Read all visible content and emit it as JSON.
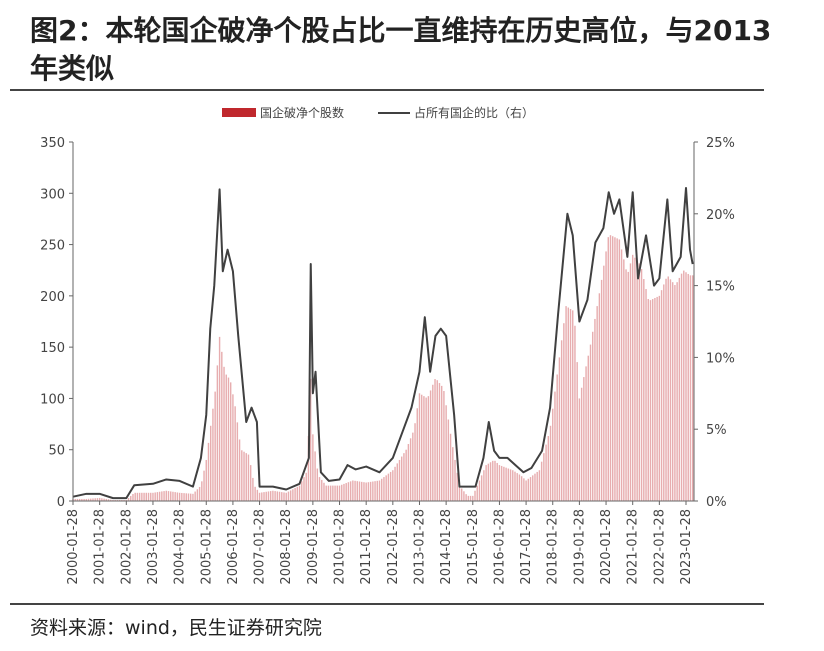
{
  "title": "图2：本轮国企破净个股占比一直维持在历史高位，与2013 年类似",
  "source": "资料来源：wind，民生证券研究院",
  "chart_data": {
    "type": "bar+line",
    "legend": {
      "bar_label": "国企破净个股数",
      "line_label": "占所有国企的比（右）"
    },
    "colors": {
      "bar": "#c0282d",
      "line": "#404040"
    },
    "y_left": {
      "min": 0,
      "max": 350,
      "ticks": [
        "0",
        "50",
        "100",
        "150",
        "200",
        "250",
        "300",
        "350"
      ]
    },
    "y_right": {
      "min": 0,
      "max": 25,
      "ticks": [
        "0%",
        "5%",
        "10%",
        "15%",
        "20%",
        "25%"
      ]
    },
    "x_ticks": [
      "2000-01-28",
      "2001-01-28",
      "2002-01-28",
      "2003-01-28",
      "2004-01-28",
      "2005-01-28",
      "2006-01-28",
      "2007-01-28",
      "2008-01-28",
      "2009-01-28",
      "2010-01-28",
      "2011-01-28",
      "2012-01-28",
      "2013-01-28",
      "2014-01-28",
      "2015-01-28",
      "2016-01-28",
      "2017-01-28",
      "2018-01-28",
      "2019-01-28",
      "2020-01-28",
      "2021-01-28",
      "2022-01-28",
      "2023-01-28"
    ],
    "bar_anchors": [
      [
        2000.0,
        2
      ],
      [
        2000.5,
        2
      ],
      [
        2001.0,
        3
      ],
      [
        2001.5,
        1
      ],
      [
        2002.0,
        1
      ],
      [
        2002.3,
        8
      ],
      [
        2003.0,
        8
      ],
      [
        2003.5,
        10
      ],
      [
        2004.0,
        8
      ],
      [
        2004.5,
        7
      ],
      [
        2004.8,
        15
      ],
      [
        2005.0,
        40
      ],
      [
        2005.2,
        80
      ],
      [
        2005.35,
        110
      ],
      [
        2005.5,
        160
      ],
      [
        2005.7,
        125
      ],
      [
        2005.9,
        118
      ],
      [
        2006.1,
        90
      ],
      [
        2006.3,
        50
      ],
      [
        2006.6,
        45
      ],
      [
        2006.8,
        15
      ],
      [
        2007.0,
        8
      ],
      [
        2007.5,
        10
      ],
      [
        2008.0,
        8
      ],
      [
        2008.5,
        15
      ],
      [
        2008.8,
        30
      ],
      [
        2008.9,
        130
      ],
      [
        2009.0,
        65
      ],
      [
        2009.2,
        25
      ],
      [
        2009.5,
        15
      ],
      [
        2010.0,
        15
      ],
      [
        2010.5,
        20
      ],
      [
        2011.0,
        18
      ],
      [
        2011.5,
        20
      ],
      [
        2012.0,
        30
      ],
      [
        2012.5,
        50
      ],
      [
        2012.8,
        70
      ],
      [
        2013.0,
        105
      ],
      [
        2013.3,
        100
      ],
      [
        2013.6,
        120
      ],
      [
        2013.9,
        110
      ],
      [
        2014.2,
        60
      ],
      [
        2014.5,
        15
      ],
      [
        2014.8,
        5
      ],
      [
        2015.0,
        5
      ],
      [
        2015.5,
        35
      ],
      [
        2015.8,
        40
      ],
      [
        2016.0,
        35
      ],
      [
        2016.5,
        30
      ],
      [
        2016.8,
        25
      ],
      [
        2017.0,
        20
      ],
      [
        2017.5,
        30
      ],
      [
        2017.9,
        70
      ],
      [
        2018.2,
        130
      ],
      [
        2018.5,
        190
      ],
      [
        2018.8,
        185
      ],
      [
        2019.0,
        100
      ],
      [
        2019.4,
        150
      ],
      [
        2019.8,
        210
      ],
      [
        2020.1,
        260
      ],
      [
        2020.5,
        255
      ],
      [
        2020.8,
        220
      ],
      [
        2021.0,
        240
      ],
      [
        2021.3,
        230
      ],
      [
        2021.6,
        195
      ],
      [
        2022.0,
        200
      ],
      [
        2022.3,
        220
      ],
      [
        2022.6,
        210
      ],
      [
        2022.9,
        225
      ],
      [
        2023.15,
        220
      ]
    ],
    "line_anchors": [
      [
        2000.0,
        0.3
      ],
      [
        2000.5,
        0.5
      ],
      [
        2001.0,
        0.5
      ],
      [
        2001.5,
        0.2
      ],
      [
        2002.0,
        0.2
      ],
      [
        2002.3,
        1.1
      ],
      [
        2003.0,
        1.2
      ],
      [
        2003.5,
        1.5
      ],
      [
        2004.0,
        1.4
      ],
      [
        2004.5,
        1.0
      ],
      [
        2004.8,
        3.0
      ],
      [
        2005.0,
        6.0
      ],
      [
        2005.15,
        12.0
      ],
      [
        2005.3,
        15.0
      ],
      [
        2005.5,
        21.7
      ],
      [
        2005.62,
        16.0
      ],
      [
        2005.8,
        17.5
      ],
      [
        2006.0,
        16.0
      ],
      [
        2006.2,
        11.5
      ],
      [
        2006.5,
        5.5
      ],
      [
        2006.7,
        6.5
      ],
      [
        2006.9,
        5.5
      ],
      [
        2007.0,
        1.0
      ],
      [
        2007.5,
        1.0
      ],
      [
        2008.0,
        0.8
      ],
      [
        2008.5,
        1.2
      ],
      [
        2008.85,
        3.0
      ],
      [
        2008.92,
        16.5
      ],
      [
        2009.0,
        7.5
      ],
      [
        2009.1,
        9.0
      ],
      [
        2009.3,
        2.0
      ],
      [
        2009.6,
        1.4
      ],
      [
        2010.0,
        1.5
      ],
      [
        2010.3,
        2.5
      ],
      [
        2010.6,
        2.2
      ],
      [
        2011.0,
        2.4
      ],
      [
        2011.5,
        2.0
      ],
      [
        2012.0,
        3.0
      ],
      [
        2012.4,
        5.0
      ],
      [
        2012.7,
        6.5
      ],
      [
        2013.0,
        9.0
      ],
      [
        2013.2,
        12.8
      ],
      [
        2013.4,
        9.0
      ],
      [
        2013.6,
        11.5
      ],
      [
        2013.8,
        12.0
      ],
      [
        2014.0,
        11.5
      ],
      [
        2014.3,
        6.0
      ],
      [
        2014.5,
        1.0
      ],
      [
        2014.8,
        1.0
      ],
      [
        2015.1,
        1.0
      ],
      [
        2015.4,
        3.0
      ],
      [
        2015.6,
        5.5
      ],
      [
        2015.8,
        3.5
      ],
      [
        2016.0,
        3.0
      ],
      [
        2016.3,
        3.0
      ],
      [
        2016.6,
        2.5
      ],
      [
        2016.9,
        2.0
      ],
      [
        2017.2,
        2.3
      ],
      [
        2017.6,
        3.5
      ],
      [
        2017.9,
        6.5
      ],
      [
        2018.2,
        13.0
      ],
      [
        2018.4,
        17.0
      ],
      [
        2018.55,
        20.0
      ],
      [
        2018.75,
        18.5
      ],
      [
        2019.0,
        12.5
      ],
      [
        2019.3,
        14.0
      ],
      [
        2019.6,
        18.0
      ],
      [
        2019.9,
        19.0
      ],
      [
        2020.1,
        21.5
      ],
      [
        2020.3,
        20.0
      ],
      [
        2020.5,
        21.0
      ],
      [
        2020.8,
        17.0
      ],
      [
        2021.0,
        21.5
      ],
      [
        2021.2,
        15.5
      ],
      [
        2021.5,
        18.5
      ],
      [
        2021.8,
        15.0
      ],
      [
        2022.0,
        15.5
      ],
      [
        2022.3,
        21.0
      ],
      [
        2022.5,
        16.0
      ],
      [
        2022.8,
        17.0
      ],
      [
        2023.0,
        21.8
      ],
      [
        2023.15,
        17.5
      ],
      [
        2023.25,
        16.5
      ]
    ],
    "x_range": [
      2000.0,
      2023.3
    ]
  }
}
